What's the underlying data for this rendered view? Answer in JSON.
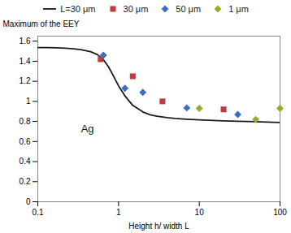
{
  "chart_data": {
    "type": "line",
    "xlabel": "Height h/ width L",
    "ylabel": "Maximum of the EEY",
    "log": "x",
    "grid": false,
    "legend": "top",
    "xlim": [
      0.1,
      100
    ],
    "xticks": [
      0.1,
      1,
      10,
      100
    ],
    "ylim": [
      0,
      1.65
    ],
    "yticks": [
      0,
      0.2,
      0.4,
      0.6,
      0.8,
      1,
      1.2,
      1.4,
      1.6
    ],
    "annotations": [
      "Ag"
    ],
    "series": [
      {
        "name": "L=30 μm",
        "type": "line",
        "line_style": "solid",
        "color": "#1a1a1a",
        "x": [
          0.1,
          0.13,
          0.17,
          0.22,
          0.28,
          0.35,
          0.45,
          0.55,
          0.65,
          0.75,
          0.85,
          1.0,
          1.2,
          1.5,
          2.0,
          2.5,
          3.0,
          4.0,
          5.0,
          7.0,
          10.0,
          15.0,
          20.0,
          30.0,
          50.0,
          70.0,
          100.0
        ],
        "values": [
          1.535,
          1.535,
          1.533,
          1.53,
          1.524,
          1.513,
          1.495,
          1.465,
          1.415,
          1.345,
          1.265,
          1.155,
          1.055,
          0.96,
          0.895,
          0.865,
          0.852,
          0.838,
          0.83,
          0.822,
          0.816,
          0.81,
          0.806,
          0.802,
          0.797,
          0.793,
          0.789
        ]
      },
      {
        "name": "30 μm",
        "type": "scatter",
        "marker": "square",
        "color": "#b94040",
        "x": [
          0.6,
          1.5,
          3.5,
          20.0
        ],
        "values": [
          1.42,
          1.25,
          1.0,
          0.92
        ]
      },
      {
        "name": "50 μm",
        "type": "scatter",
        "marker": "diamond",
        "color": "#3a6fc4",
        "x": [
          0.65,
          1.2,
          2.0,
          7.0,
          30.0
        ],
        "values": [
          1.46,
          1.13,
          1.09,
          0.935,
          0.87
        ]
      },
      {
        "name": "1 μm",
        "type": "scatter",
        "marker": "diamond",
        "color": "#8ab030",
        "x": [
          10.0,
          50.0,
          100.0
        ],
        "values": [
          0.93,
          0.82,
          0.93
        ]
      }
    ]
  }
}
